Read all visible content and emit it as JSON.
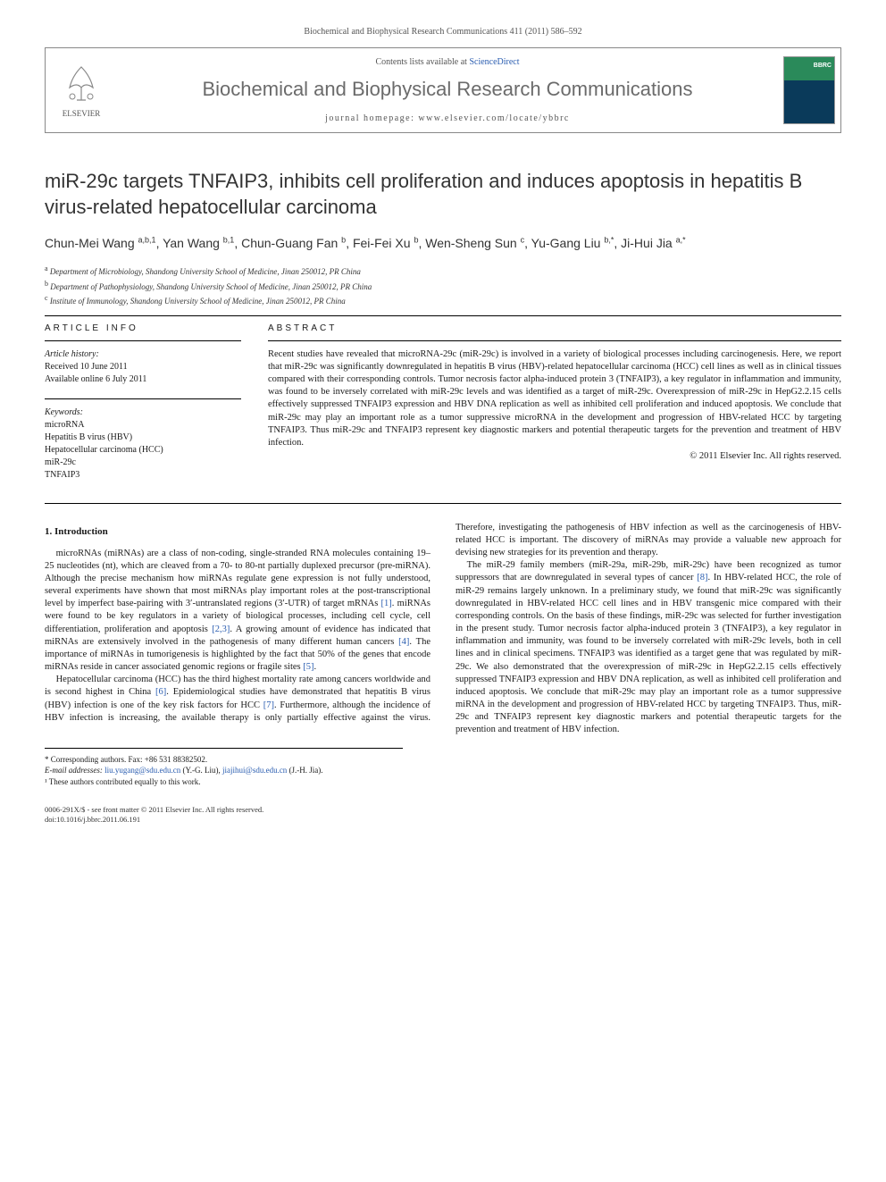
{
  "journal_ref": "Biochemical and Biophysical Research Communications 411 (2011) 586–592",
  "header": {
    "contents_prefix": "Contents lists available at ",
    "contents_link": "ScienceDirect",
    "journal_name": "Biochemical and Biophysical Research Communications",
    "homepage_label": "journal homepage: ",
    "homepage_url": "www.elsevier.com/locate/ybbrc",
    "publisher": "ELSEVIER"
  },
  "title": "miR-29c targets TNFAIP3, inhibits cell proliferation and induces apoptosis in hepatitis B virus-related hepatocellular carcinoma",
  "authors_html": "Chun-Mei Wang <sup>a,b,1</sup>, Yan Wang <sup>b,1</sup>, Chun-Guang Fan <sup>b</sup>, Fei-Fei Xu <sup>b</sup>, Wen-Sheng Sun <sup>c</sup>, Yu-Gang Liu <sup>b,*</sup>, Ji-Hui Jia <sup>a,*</sup>",
  "affiliations": [
    {
      "sup": "a",
      "text": "Department of Microbiology, Shandong University School of Medicine, Jinan 250012, PR China"
    },
    {
      "sup": "b",
      "text": "Department of Pathophysiology, Shandong University School of Medicine, Jinan 250012, PR China"
    },
    {
      "sup": "c",
      "text": "Institute of Immunology, Shandong University School of Medicine, Jinan 250012, PR China"
    }
  ],
  "article_info": {
    "heading": "ARTICLE INFO",
    "history_label": "Article history:",
    "received": "Received 10 June 2011",
    "available": "Available online 6 July 2011",
    "keywords_label": "Keywords:",
    "keywords": [
      "microRNA",
      "Hepatitis B virus (HBV)",
      "Hepatocellular carcinoma (HCC)",
      "miR-29c",
      "TNFAIP3"
    ]
  },
  "abstract": {
    "heading": "ABSTRACT",
    "text": "Recent studies have revealed that microRNA-29c (miR-29c) is involved in a variety of biological processes including carcinogenesis. Here, we report that miR-29c was significantly downregulated in hepatitis B virus (HBV)-related hepatocellular carcinoma (HCC) cell lines as well as in clinical tissues compared with their corresponding controls. Tumor necrosis factor alpha-induced protein 3 (TNFAIP3), a key regulator in inflammation and immunity, was found to be inversely correlated with miR-29c levels and was identified as a target of miR-29c. Overexpression of miR-29c in HepG2.2.15 cells effectively suppressed TNFAIP3 expression and HBV DNA replication as well as inhibited cell proliferation and induced apoptosis. We conclude that miR-29c may play an important role as a tumor suppressive microRNA in the development and progression of HBV-related HCC by targeting TNFAIP3. Thus miR-29c and TNFAIP3 represent key diagnostic markers and potential therapeutic targets for the prevention and treatment of HBV infection.",
    "copyright": "© 2011 Elsevier Inc. All rights reserved."
  },
  "body": {
    "section1_heading": "1. Introduction",
    "p1": "microRNAs (miRNAs) are a class of non-coding, single-stranded RNA molecules containing 19–25 nucleotides (nt), which are cleaved from a 70- to 80-nt partially duplexed precursor (pre-miRNA). Although the precise mechanism how miRNAs regulate gene expression is not fully understood, several experiments have shown that most miRNAs play important roles at the post-transcriptional level by imperfect base-pairing with 3′-untranslated regions (3′-UTR) of target mRNAs ",
    "ref1": "[1]",
    "p1b": ". miRNAs were found to be key regulators in a variety of biological processes, including cell cycle, cell differentiation, proliferation and apoptosis ",
    "ref23": "[2,3]",
    "p1c": ". A growing amount of evidence has indicated that miRNAs are extensively involved in the pathogenesis of many different human cancers ",
    "ref4": "[4]",
    "p1d": ". The importance of miRNAs in tumorigenesis is highlighted by the fact that 50% of the genes that encode miRNAs reside in cancer associated genomic regions or fragile sites ",
    "ref5": "[5]",
    "p1e": ".",
    "p2": "Hepatocellular carcinoma (HCC) has the third highest mortality rate among cancers worldwide and is second highest in China ",
    "ref6": "[6]",
    "p2b": ". Epidemiological studies have demonstrated that hepatitis B virus (HBV) infection is one of the key risk factors for HCC ",
    "ref7": "[7]",
    "p2c": ". Furthermore, although the incidence of HBV infection is increasing, the available therapy is only partially effective against the virus. Therefore, investigating the pathogenesis of HBV infection as well as the carcinogenesis of HBV-related HCC is important. The discovery of miRNAs may provide a valuable new approach for devising new strategies for its prevention and therapy.",
    "p3": "The miR-29 family members (miR-29a, miR-29b, miR-29c) have been recognized as tumor suppressors that are downregulated in several types of cancer ",
    "ref8": "[8]",
    "p3b": ". In HBV-related HCC, the role of miR-29 remains largely unknown. In a preliminary study, we found that miR-29c was significantly downregulated in HBV-related HCC cell lines and in HBV transgenic mice compared with their corresponding controls. On the basis of these findings, miR-29c was selected for further investigation in the present study. Tumor necrosis factor alpha-induced protein 3 (TNFAIP3), a key regulator in inflammation and immunity, was found to be inversely correlated with miR-29c levels, both in cell lines and in clinical specimens. TNFAIP3 was identified as a target gene that was regulated by miR-29c. We also demonstrated that the overexpression of miR-29c in HepG2.2.15 cells effectively suppressed TNFAIP3 expression and HBV DNA replication, as well as inhibited cell proliferation and induced apoptosis. We conclude that miR-29c may play an important role as a tumor suppressive miRNA in the development and progression of HBV-related HCC by targeting TNFAIP3. Thus, miR-29c and TNFAIP3 represent key diagnostic markers and potential therapeutic targets for the prevention and treatment of HBV infection."
  },
  "footnotes": {
    "corr": "* Corresponding authors. Fax: +86 531 88382502.",
    "email_label": "E-mail addresses:",
    "email1": "liu.yugang@sdu.edu.cn",
    "email1_name": " (Y.-G. Liu), ",
    "email2": "jiajihui@sdu.edu.cn",
    "email2_name": " (J.-H. Jia).",
    "contrib": "¹ These authors contributed equally to this work."
  },
  "footer": {
    "line1": "0006-291X/$ - see front matter © 2011 Elsevier Inc. All rights reserved.",
    "line2": "doi:10.1016/j.bbrc.2011.06.191"
  }
}
